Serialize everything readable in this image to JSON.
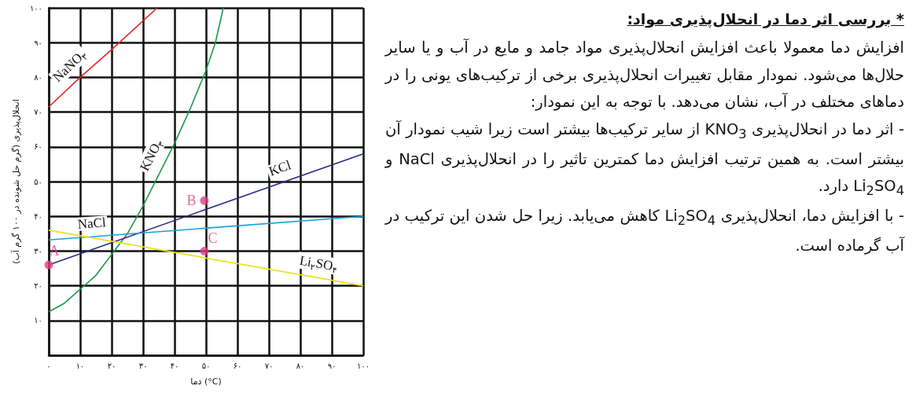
{
  "chart_data": {
    "type": "line",
    "title": "* بررسی اثر دما در انحلال‌پذیری مواد:",
    "annotations": [
      "افزایش دما معمولا باعث افزایش انحلال‌پذیری مواد جامد و مایع در آب و یا سایر حلال‌ها می‌شود. نمودار مقابل تغییرات انحلال‌پذیری برخی از ترکیب‌های یونی را در دماهای مختلف در آب، نشان می‌دهد. با توجه به این نمودار:",
      "- اثر دما در انحلال‌پذیری KNO$_{3}$ از سایر ترکیب‌ها بیشتر است زیرا شیب نمودار آن بیشتر است. به همین ترتیب افزایش دما کمترین تاثیر را در انحلال‌پذیری NaCl و Li$_{2}$SO$_{4}$ دارد.",
      "- با افزایش دما، انحلال‌پذیری Li$_{2}$SO$_{4}$ کاهش می‌یابد. زیرا حل شدن این ترکیب در آب گرماده است."
    ],
    "xlabel": "دما (°C)",
    "ylabel": "انحلال‌پذیری (گرم حل شونده در ۱۰۰ گرم آب)",
    "xlim": [
      0,
      100
    ],
    "xticks": [
      {
        "value": 0,
        "label": "۰"
      },
      {
        "value": 10,
        "label": "۱۰"
      },
      {
        "value": 20,
        "label": "۲۰"
      },
      {
        "value": 30,
        "label": "۳۰"
      },
      {
        "value": 40,
        "label": "۴۰"
      },
      {
        "value": 50,
        "label": "۵۰"
      },
      {
        "value": 60,
        "label": "۶۰"
      },
      {
        "value": 70,
        "label": "۷۰"
      },
      {
        "value": 80,
        "label": "۸۰"
      },
      {
        "value": 90,
        "label": "۹۰"
      },
      {
        "value": 100,
        "label": "۱۰۰"
      }
    ],
    "ylim": [
      0,
      100
    ],
    "yticks": [
      {
        "value": 0,
        "label": null
      },
      {
        "value": 10,
        "label": "۱۰"
      },
      {
        "value": 20,
        "label": "۲۰"
      },
      {
        "value": 30,
        "label": "۳۰"
      },
      {
        "value": 40,
        "label": "۴۰"
      },
      {
        "value": 50,
        "label": "۵۰"
      },
      {
        "value": 60,
        "label": "۶۰"
      },
      {
        "value": 70,
        "label": "۷۰"
      },
      {
        "value": 80,
        "label": "۸۰"
      },
      {
        "value": 90,
        "label": "۹۰"
      },
      {
        "value": 100,
        "label": "۱۰۰"
      }
    ],
    "grid": true,
    "series": [
      {
        "name": "NaNO$_{۳}$",
        "color": "#e02424",
        "x": [
          0,
          10,
          20,
          34.5
        ],
        "values": [
          71.5,
          80,
          88,
          100
        ]
      },
      {
        "name": "KNO$_{۳}$",
        "color": "#1a9a4a",
        "x": [
          0,
          5,
          10,
          15,
          20,
          25,
          30,
          35,
          40,
          45,
          50,
          53,
          55.5
        ],
        "values": [
          12.5,
          15,
          19,
          23,
          29,
          35,
          43,
          52,
          61,
          71,
          82,
          90,
          100
        ]
      },
      {
        "name": "KCl",
        "color": "#2a2a80",
        "x": [
          0,
          100
        ],
        "values": [
          26,
          58
        ]
      },
      {
        "name": "NaCl",
        "color": "#1aa0d8",
        "x": [
          0,
          100
        ],
        "values": [
          33.2,
          40
        ]
      },
      {
        "name": "Li$_{۲}$SO$_{۴}$",
        "color": "#ece020",
        "x": [
          0,
          100
        ],
        "values": [
          36,
          20
        ]
      },
      {
        "type": "scatter",
        "color": "#e0408a",
        "x": [
          0,
          49.5,
          49.5
        ],
        "values": [
          26,
          44.5,
          30
        ],
        "value_labels": [
          "A",
          "B",
          "C"
        ]
      }
    ]
  }
}
